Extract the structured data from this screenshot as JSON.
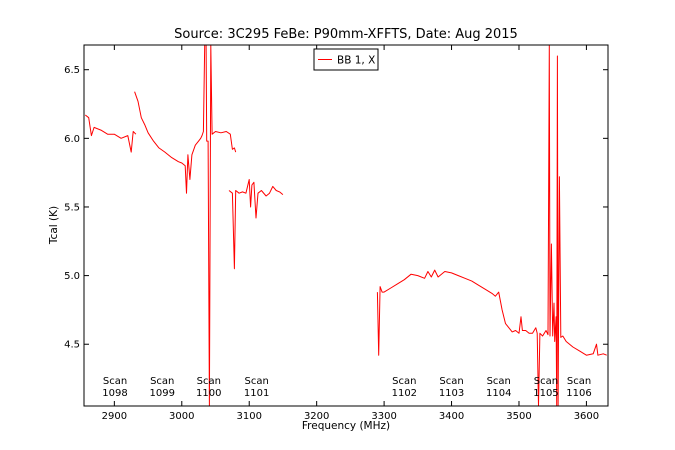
{
  "chart_data": {
    "type": "line",
    "title": "Source: 3C295 FeBe: P90mm-XFFTS, Date: Aug 2015",
    "xlabel": "Frequency (MHz)",
    "ylabel": "Tcal (K)",
    "xlim": [
      2855,
      3632
    ],
    "ylim": [
      4.05,
      6.68
    ],
    "xticks": [
      2900,
      3000,
      3100,
      3200,
      3300,
      3400,
      3500,
      3600
    ],
    "yticks": [
      4.5,
      5.0,
      5.5,
      6.0,
      6.5
    ],
    "xtick_labels": [
      "2900",
      "3000",
      "3100",
      "3200",
      "3300",
      "3400",
      "3500",
      "3600"
    ],
    "ytick_labels": [
      "4.5",
      "5.0",
      "5.5",
      "6.0",
      "6.5"
    ],
    "grid": false,
    "legend_position": "top-center",
    "series": [
      {
        "name": "BB 1, X",
        "color": "#ff0000",
        "segments": [
          [
            [
              2857,
              6.17
            ],
            [
              2862,
              6.15
            ],
            [
              2866,
              6.02
            ],
            [
              2870,
              6.08
            ],
            [
              2880,
              6.06
            ],
            [
              2890,
              6.03
            ],
            [
              2900,
              6.03
            ],
            [
              2910,
              6.0
            ],
            [
              2920,
              6.02
            ],
            [
              2925,
              5.9
            ],
            [
              2928,
              6.05
            ],
            [
              2932,
              6.03
            ]
          ],
          [
            [
              2930,
              6.34
            ],
            [
              2935,
              6.27
            ],
            [
              2940,
              6.15
            ],
            [
              2945,
              6.1
            ],
            [
              2950,
              6.04
            ],
            [
              2958,
              5.98
            ],
            [
              2966,
              5.93
            ],
            [
              2975,
              5.9
            ],
            [
              2985,
              5.86
            ],
            [
              2995,
              5.83
            ],
            [
              3000,
              5.82
            ],
            [
              3005,
              5.8
            ],
            [
              3007,
              5.6
            ],
            [
              3009,
              5.88
            ],
            [
              3012,
              5.7
            ],
            [
              3015,
              5.88
            ],
            [
              3020,
              5.95
            ],
            [
              3025,
              5.98
            ],
            [
              3028,
              6.0
            ],
            [
              3030,
              6.02
            ],
            [
              3032,
              6.05
            ],
            [
              3034,
              6.68
            ],
            [
              3036,
              6.68
            ],
            [
              3037,
              5.98
            ],
            [
              3039,
              5.98
            ],
            [
              3041,
              4.05
            ],
            [
              3043,
              6.68
            ],
            [
              3045,
              6.03
            ],
            [
              3050,
              6.05
            ],
            [
              3058,
              6.04
            ],
            [
              3066,
              6.05
            ],
            [
              3072,
              6.03
            ],
            [
              3075,
              5.92
            ],
            [
              3078,
              5.93
            ],
            [
              3080,
              5.9
            ]
          ],
          [
            [
              3070,
              5.62
            ],
            [
              3075,
              5.6
            ],
            [
              3078,
              5.05
            ],
            [
              3080,
              5.62
            ],
            [
              3085,
              5.6
            ],
            [
              3090,
              5.61
            ],
            [
              3095,
              5.6
            ],
            [
              3100,
              5.7
            ],
            [
              3102,
              5.5
            ],
            [
              3104,
              5.66
            ],
            [
              3107,
              5.68
            ],
            [
              3110,
              5.42
            ],
            [
              3113,
              5.6
            ],
            [
              3118,
              5.62
            ],
            [
              3125,
              5.58
            ],
            [
              3130,
              5.6
            ],
            [
              3135,
              5.65
            ],
            [
              3140,
              5.62
            ],
            [
              3145,
              5.61
            ],
            [
              3150,
              5.59
            ]
          ],
          [
            [
              3290,
              4.88
            ],
            [
              3292,
              4.42
            ],
            [
              3294,
              4.92
            ],
            [
              3297,
              4.88
            ],
            [
              3300,
              4.88
            ],
            [
              3310,
              4.91
            ],
            [
              3320,
              4.94
            ],
            [
              3330,
              4.97
            ],
            [
              3340,
              5.01
            ],
            [
              3350,
              5.0
            ],
            [
              3360,
              4.98
            ],
            [
              3365,
              5.03
            ],
            [
              3370,
              4.99
            ],
            [
              3375,
              5.04
            ],
            [
              3380,
              4.99
            ],
            [
              3390,
              5.03
            ],
            [
              3400,
              5.02
            ],
            [
              3410,
              5.0
            ],
            [
              3420,
              4.98
            ],
            [
              3430,
              4.96
            ],
            [
              3440,
              4.93
            ],
            [
              3450,
              4.9
            ],
            [
              3460,
              4.87
            ],
            [
              3465,
              4.85
            ],
            [
              3470,
              4.88
            ],
            [
              3475,
              4.75
            ],
            [
              3480,
              4.65
            ],
            [
              3485,
              4.62
            ],
            [
              3490,
              4.59
            ],
            [
              3495,
              4.6
            ],
            [
              3500,
              4.58
            ],
            [
              3503,
              4.7
            ],
            [
              3505,
              4.6
            ],
            [
              3510,
              4.6
            ],
            [
              3515,
              4.58
            ],
            [
              3520,
              4.58
            ],
            [
              3525,
              4.62
            ],
            [
              3527,
              4.58
            ],
            [
              3529,
              4.05
            ],
            [
              3531,
              4.58
            ],
            [
              3535,
              4.56
            ],
            [
              3540,
              4.6
            ],
            [
              3543,
              4.57
            ],
            [
              3545,
              6.68
            ],
            [
              3546,
              4.56
            ],
            [
              3548,
              5.23
            ],
            [
              3550,
              4.56
            ],
            [
              3552,
              4.8
            ],
            [
              3553,
              4.52
            ],
            [
              3555,
              4.7
            ],
            [
              3556,
              4.05
            ],
            [
              3557,
              6.6
            ],
            [
              3558,
              4.05
            ],
            [
              3560,
              5.72
            ],
            [
              3562,
              4.55
            ],
            [
              3565,
              4.56
            ],
            [
              3570,
              4.52
            ],
            [
              3580,
              4.48
            ],
            [
              3590,
              4.45
            ],
            [
              3600,
              4.42
            ],
            [
              3610,
              4.43
            ],
            [
              3615,
              4.5
            ],
            [
              3617,
              4.42
            ],
            [
              3625,
              4.43
            ],
            [
              3630,
              4.42
            ]
          ]
        ]
      }
    ],
    "annotations": [
      {
        "x": 2901,
        "lines": [
          "Scan",
          "1098"
        ]
      },
      {
        "x": 2971,
        "lines": [
          "Scan",
          "1099"
        ]
      },
      {
        "x": 3040,
        "lines": [
          "Scan",
          "1100"
        ]
      },
      {
        "x": 3111,
        "lines": [
          "Scan",
          "1101"
        ]
      },
      {
        "x": 3330,
        "lines": [
          "Scan",
          "1102"
        ]
      },
      {
        "x": 3400,
        "lines": [
          "Scan",
          "1103"
        ]
      },
      {
        "x": 3470,
        "lines": [
          "Scan",
          "1104"
        ]
      },
      {
        "x": 3540,
        "lines": [
          "Scan",
          "1105"
        ]
      },
      {
        "x": 3589,
        "lines": [
          "Scan",
          "1106"
        ]
      }
    ]
  }
}
